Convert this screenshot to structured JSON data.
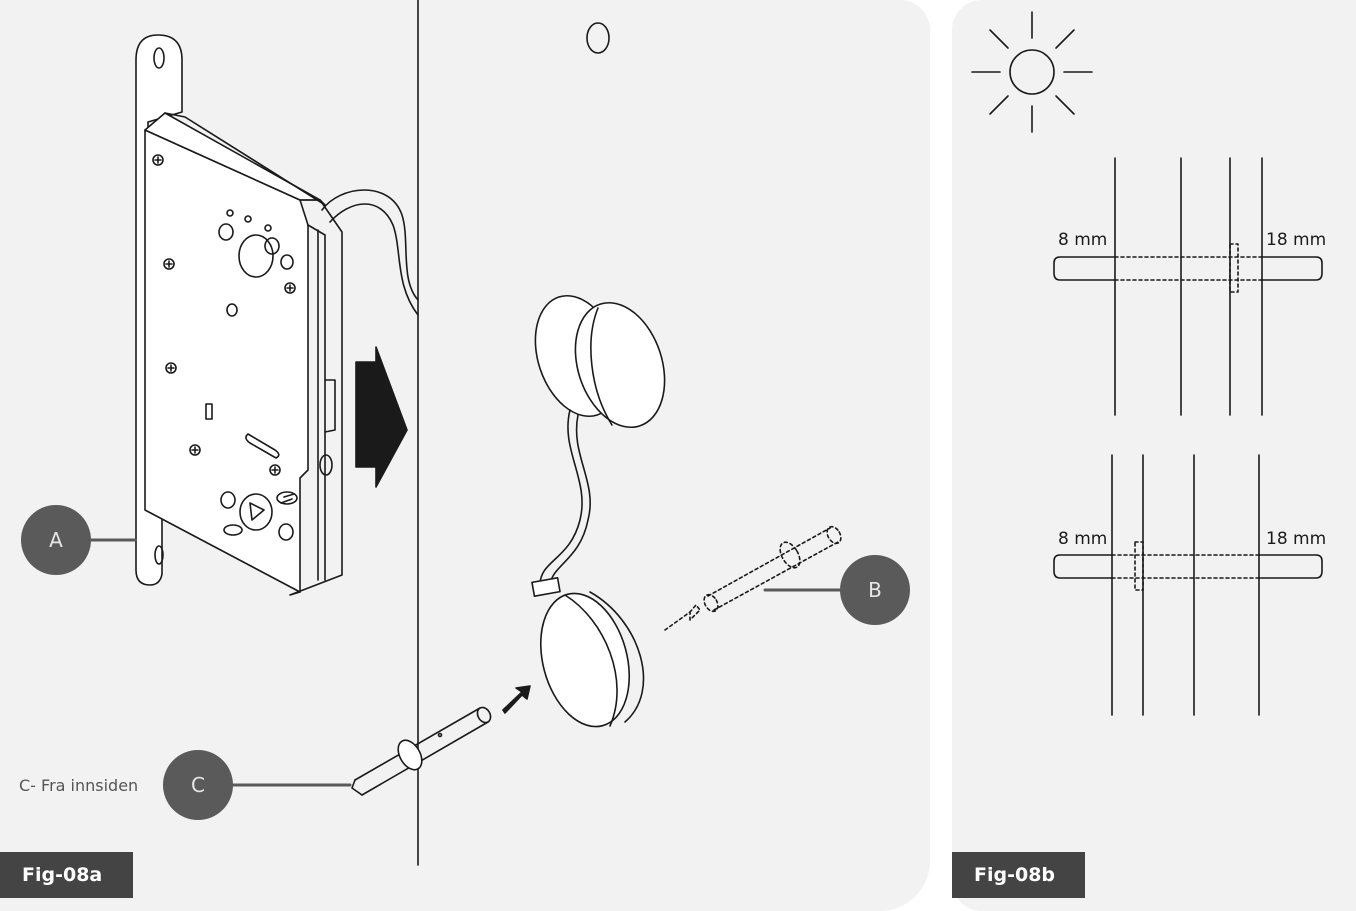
{
  "figures": {
    "left": {
      "label": "Fig-08a"
    },
    "right": {
      "label": "Fig-08b"
    }
  },
  "callouts": {
    "a": "A",
    "b": "B",
    "c": "C"
  },
  "caption_c": "C- Fra innsiden",
  "measurements": {
    "top": {
      "left": "8 mm",
      "right": "18 mm"
    },
    "bottom": {
      "left": "8 mm",
      "right": "18 mm"
    }
  },
  "icons": [
    "sun-icon",
    "arrow-right-icon"
  ],
  "colors": {
    "panel": "#f2f2f2",
    "label_bg": "#444444",
    "callout_bg": "#5a5a5a",
    "line": "#1a1a1a"
  }
}
